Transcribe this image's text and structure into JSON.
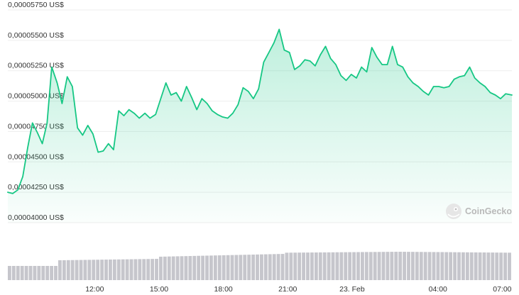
{
  "chart_data": {
    "type": "area",
    "y_unit_suffix": " US$",
    "y_ticks": [
      "0,00004000 US$",
      "0,00004250 US$",
      "0,00004500 US$",
      "0,00004750 US$",
      "0,00005000 US$",
      "0,00005250 US$",
      "0,00005500 US$",
      "0,00005750 US$"
    ],
    "y_tick_values": [
      4e-05,
      4.25e-05,
      4.5e-05,
      4.75e-05,
      5e-05,
      5.25e-05,
      5.5e-05,
      5.75e-05
    ],
    "ylim": [
      4e-05,
      5.75e-05
    ],
    "x_ticks": [
      "12:00",
      "15:00",
      "18:00",
      "21:00",
      "23. Feb",
      "04:00",
      "07:00"
    ],
    "x_tick_hours": [
      12,
      15,
      18,
      21,
      24,
      28,
      31
    ],
    "xlim_hours": [
      7.95,
      31.45
    ],
    "series": [
      {
        "x_hours": [
          7.95,
          8.18,
          8.42,
          8.65,
          8.88,
          9.1,
          9.33,
          9.56,
          9.78,
          10.0,
          10.25,
          10.48,
          10.72,
          10.96,
          11.2,
          11.44,
          11.68,
          11.92,
          12.16,
          12.4,
          12.64,
          12.88,
          13.12,
          13.36,
          13.6,
          13.84,
          14.08,
          14.34,
          14.58,
          14.84,
          15.08,
          15.32,
          15.56,
          15.8,
          16.04,
          16.28,
          16.52,
          16.76,
          17.0,
          17.24,
          17.48,
          17.72,
          17.96,
          18.2,
          18.44,
          18.68,
          18.92,
          19.16,
          19.4,
          19.64,
          19.88,
          20.12,
          20.36,
          20.6,
          20.84,
          21.08,
          21.32,
          21.56,
          21.8,
          22.04,
          22.28,
          22.52,
          22.76,
          23.0,
          23.24,
          23.48,
          23.72,
          23.96,
          24.2,
          24.44,
          24.68,
          24.92,
          25.16,
          25.4,
          25.64,
          25.88,
          26.12,
          26.36,
          26.6,
          26.84,
          27.08,
          27.32,
          27.56,
          27.8,
          28.04,
          28.28,
          28.52,
          28.76,
          29.0,
          29.24,
          29.48,
          29.72,
          29.96,
          30.2,
          30.44,
          30.68,
          30.92,
          31.16,
          31.45
        ],
        "values": [
          4.25e-05,
          4.24e-05,
          4.27e-05,
          4.38e-05,
          4.62e-05,
          4.82e-05,
          4.74e-05,
          4.65e-05,
          4.82e-05,
          5.28e-05,
          5.15e-05,
          4.98e-05,
          5.2e-05,
          5.12e-05,
          4.78e-05,
          4.72e-05,
          4.8e-05,
          4.73e-05,
          4.58e-05,
          4.59e-05,
          4.65e-05,
          4.6e-05,
          4.92e-05,
          4.88e-05,
          4.93e-05,
          4.9e-05,
          4.86e-05,
          4.9e-05,
          4.86e-05,
          4.89e-05,
          5.02e-05,
          5.15e-05,
          5.05e-05,
          5.07e-05,
          5e-05,
          5.12e-05,
          5.03e-05,
          4.93e-05,
          5.02e-05,
          4.98e-05,
          4.92e-05,
          4.89e-05,
          4.87e-05,
          4.86e-05,
          4.9e-05,
          4.97e-05,
          5.11e-05,
          5.08e-05,
          5.02e-05,
          5.1e-05,
          5.32e-05,
          5.4e-05,
          5.48e-05,
          5.59e-05,
          5.42e-05,
          5.4e-05,
          5.26e-05,
          5.29e-05,
          5.34e-05,
          5.33e-05,
          5.29e-05,
          5.38e-05,
          5.45e-05,
          5.35e-05,
          5.3e-05,
          5.21e-05,
          5.17e-05,
          5.22e-05,
          5.19e-05,
          5.28e-05,
          5.24e-05,
          5.44e-05,
          5.36e-05,
          5.3e-05,
          5.3e-05,
          5.45e-05,
          5.3e-05,
          5.28e-05,
          5.2e-05,
          5.15e-05,
          5.12e-05,
          5.08e-05,
          5.05e-05,
          5.12e-05,
          5.12e-05,
          5.11e-05,
          5.12e-05,
          5.18e-05,
          5.2e-05,
          5.21e-05,
          5.28e-05,
          5.19e-05,
          5.15e-05,
          5.12e-05,
          5.07e-05,
          5.05e-05,
          5.02e-05,
          5.06e-05,
          5.05e-05
        ]
      }
    ],
    "volume_bars": 120,
    "grid": true,
    "legend": "none"
  },
  "watermark": {
    "text": "CoinGecko"
  },
  "colors": {
    "line": "#16c784",
    "area_top": "#16c784",
    "grid": "#ededed",
    "volume": "#c6c6cc",
    "axis_text": "#333333",
    "watermark": "#bdbdbd"
  }
}
